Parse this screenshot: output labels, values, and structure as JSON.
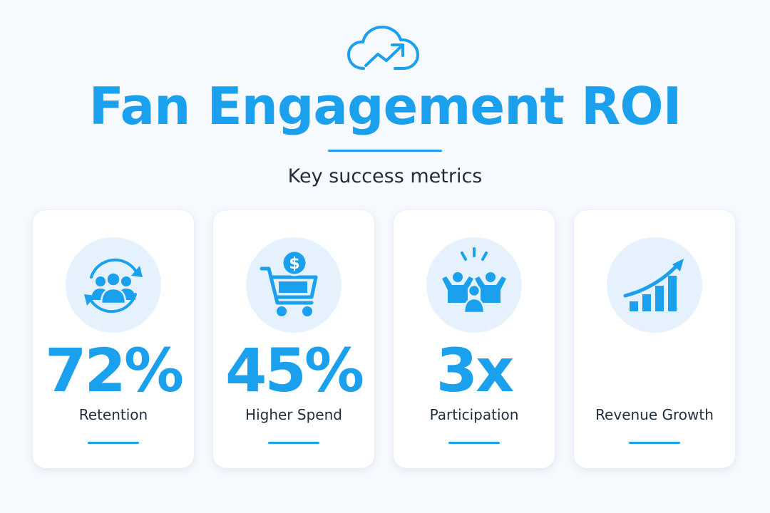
{
  "header": {
    "icon": "cloud-growth-icon",
    "title": "Fan Engagement ROI",
    "subtitle": "Key success metrics"
  },
  "colors": {
    "accent": "#1aa0ec",
    "text": "#1f2d3d",
    "icon_bg": "#e5f2fd",
    "background": "#f6f9fd"
  },
  "metrics": [
    {
      "icon": "fan-retention-icon",
      "value": "72%",
      "label": "Retention"
    },
    {
      "icon": "shopping-cart-dollar-icon",
      "value": "45%",
      "label": "Higher Spend"
    },
    {
      "icon": "cheering-crowd-icon",
      "value": "3x",
      "label": "Participation"
    },
    {
      "icon": "growth-chart-icon",
      "value": "",
      "label": "Revenue Growth"
    }
  ]
}
